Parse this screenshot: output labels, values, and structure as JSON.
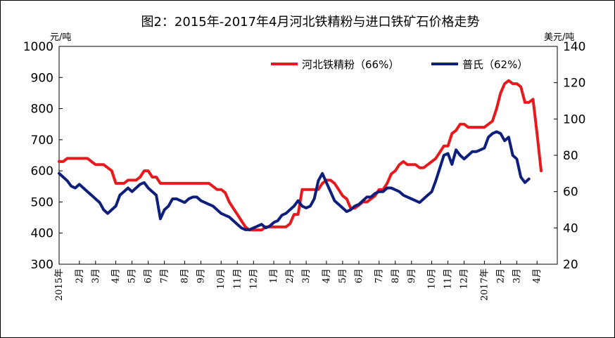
{
  "chart_data": {
    "type": "line",
    "title": "图2：2015年-2017年4月河北铁精粉与进口铁矿石价格走势",
    "ylabel_left": "元/吨",
    "ylabel_right": "美元/吨",
    "ylim_left": [
      300,
      1000
    ],
    "yticks_left": [
      300,
      400,
      500,
      600,
      700,
      800,
      900,
      1000
    ],
    "ylim_right": [
      20,
      140
    ],
    "yticks_right": [
      20,
      40,
      60,
      80,
      100,
      120,
      140
    ],
    "grid": false,
    "legend_position": "top-right",
    "x_range": [
      0,
      123
    ],
    "x_tick_labels": [
      {
        "label": "2015年",
        "x": 0
      },
      {
        "label": "2月",
        "x": 5
      },
      {
        "label": "3月",
        "x": 9
      },
      {
        "label": "4月",
        "x": 14
      },
      {
        "label": "5月",
        "x": 18
      },
      {
        "label": "6月",
        "x": 22
      },
      {
        "label": "7月",
        "x": 26
      },
      {
        "label": "8月",
        "x": 31
      },
      {
        "label": "9月",
        "x": 35
      },
      {
        "label": "10月",
        "x": 40
      },
      {
        "label": "11月",
        "x": 44
      },
      {
        "label": "12月",
        "x": 48
      },
      {
        "label": "1月",
        "x": 53
      },
      {
        "label": "2月",
        "x": 57
      },
      {
        "label": "3月",
        "x": 61
      },
      {
        "label": "4月",
        "x": 66
      },
      {
        "label": "5月",
        "x": 70
      },
      {
        "label": "6月",
        "x": 74
      },
      {
        "label": "7月",
        "x": 79
      },
      {
        "label": "8月",
        "x": 83
      },
      {
        "label": "9月",
        "x": 87
      },
      {
        "label": "10月",
        "x": 92
      },
      {
        "label": "11月",
        "x": 96
      },
      {
        "label": "12月",
        "x": 100
      },
      {
        "label": "2017年",
        "x": 105
      },
      {
        "label": "2月",
        "x": 109
      },
      {
        "label": "3月",
        "x": 113
      },
      {
        "label": "4月",
        "x": 118
      }
    ],
    "series": [
      {
        "name": "河北铁精粉（66%）",
        "axis": "left",
        "color": "#e8191c",
        "points": [
          [
            0,
            630
          ],
          [
            1,
            630
          ],
          [
            2,
            640
          ],
          [
            3,
            640
          ],
          [
            4,
            640
          ],
          [
            5,
            640
          ],
          [
            6,
            640
          ],
          [
            7,
            640
          ],
          [
            8,
            630
          ],
          [
            9,
            620
          ],
          [
            10,
            620
          ],
          [
            11,
            620
          ],
          [
            12,
            610
          ],
          [
            13,
            600
          ],
          [
            14,
            560
          ],
          [
            15,
            560
          ],
          [
            16,
            560
          ],
          [
            17,
            570
          ],
          [
            18,
            570
          ],
          [
            19,
            570
          ],
          [
            20,
            580
          ],
          [
            21,
            600
          ],
          [
            22,
            600
          ],
          [
            23,
            580
          ],
          [
            24,
            580
          ],
          [
            25,
            560
          ],
          [
            26,
            560
          ],
          [
            27,
            560
          ],
          [
            28,
            560
          ],
          [
            29,
            560
          ],
          [
            30,
            560
          ],
          [
            31,
            560
          ],
          [
            32,
            560
          ],
          [
            33,
            560
          ],
          [
            34,
            560
          ],
          [
            35,
            560
          ],
          [
            36,
            560
          ],
          [
            37,
            560
          ],
          [
            38,
            550
          ],
          [
            39,
            540
          ],
          [
            40,
            540
          ],
          [
            41,
            530
          ],
          [
            42,
            500
          ],
          [
            43,
            480
          ],
          [
            44,
            460
          ],
          [
            45,
            440
          ],
          [
            46,
            420
          ],
          [
            47,
            410
          ],
          [
            48,
            410
          ],
          [
            49,
            410
          ],
          [
            50,
            410
          ],
          [
            51,
            420
          ],
          [
            52,
            420
          ],
          [
            53,
            420
          ],
          [
            54,
            420
          ],
          [
            55,
            420
          ],
          [
            56,
            420
          ],
          [
            57,
            430
          ],
          [
            58,
            460
          ],
          [
            59,
            460
          ],
          [
            60,
            540
          ],
          [
            61,
            540
          ],
          [
            62,
            540
          ],
          [
            63,
            540
          ],
          [
            64,
            540
          ],
          [
            65,
            560
          ],
          [
            66,
            570
          ],
          [
            67,
            570
          ],
          [
            68,
            560
          ],
          [
            69,
            540
          ],
          [
            70,
            520
          ],
          [
            71,
            510
          ],
          [
            72,
            480
          ],
          [
            73,
            480
          ],
          [
            74,
            490
          ],
          [
            75,
            500
          ],
          [
            76,
            500
          ],
          [
            77,
            510
          ],
          [
            78,
            520
          ],
          [
            79,
            540
          ],
          [
            80,
            540
          ],
          [
            81,
            560
          ],
          [
            82,
            590
          ],
          [
            83,
            600
          ],
          [
            84,
            620
          ],
          [
            85,
            630
          ],
          [
            86,
            620
          ],
          [
            87,
            620
          ],
          [
            88,
            620
          ],
          [
            89,
            610
          ],
          [
            90,
            610
          ],
          [
            91,
            620
          ],
          [
            92,
            630
          ],
          [
            93,
            640
          ],
          [
            94,
            660
          ],
          [
            95,
            680
          ],
          [
            96,
            680
          ],
          [
            97,
            720
          ],
          [
            98,
            730
          ],
          [
            99,
            750
          ],
          [
            100,
            750
          ],
          [
            101,
            740
          ],
          [
            102,
            740
          ],
          [
            103,
            740
          ],
          [
            104,
            740
          ],
          [
            105,
            740
          ],
          [
            106,
            750
          ],
          [
            107,
            760
          ],
          [
            108,
            800
          ],
          [
            109,
            850
          ],
          [
            110,
            880
          ],
          [
            111,
            890
          ],
          [
            112,
            880
          ],
          [
            113,
            880
          ],
          [
            114,
            870
          ],
          [
            115,
            820
          ],
          [
            116,
            820
          ],
          [
            117,
            830
          ],
          [
            118,
            720
          ],
          [
            119,
            600
          ]
        ]
      },
      {
        "name": "普氏（62%）",
        "axis": "right",
        "color": "#0d1f7a",
        "points": [
          [
            0,
            70
          ],
          [
            1,
            68
          ],
          [
            2,
            66
          ],
          [
            3,
            63
          ],
          [
            4,
            62
          ],
          [
            5,
            64
          ],
          [
            6,
            62
          ],
          [
            7,
            60
          ],
          [
            8,
            58
          ],
          [
            9,
            56
          ],
          [
            10,
            54
          ],
          [
            11,
            50
          ],
          [
            12,
            48
          ],
          [
            13,
            50
          ],
          [
            14,
            52
          ],
          [
            15,
            58
          ],
          [
            16,
            60
          ],
          [
            17,
            62
          ],
          [
            18,
            60
          ],
          [
            19,
            62
          ],
          [
            20,
            64
          ],
          [
            21,
            65
          ],
          [
            22,
            62
          ],
          [
            23,
            60
          ],
          [
            24,
            58
          ],
          [
            25,
            45
          ],
          [
            26,
            50
          ],
          [
            27,
            52
          ],
          [
            28,
            56
          ],
          [
            29,
            56
          ],
          [
            30,
            55
          ],
          [
            31,
            54
          ],
          [
            32,
            56
          ],
          [
            33,
            57
          ],
          [
            34,
            57
          ],
          [
            35,
            55
          ],
          [
            36,
            54
          ],
          [
            37,
            53
          ],
          [
            38,
            52
          ],
          [
            39,
            50
          ],
          [
            40,
            48
          ],
          [
            41,
            47
          ],
          [
            42,
            46
          ],
          [
            43,
            44
          ],
          [
            44,
            42
          ],
          [
            45,
            40
          ],
          [
            46,
            39
          ],
          [
            47,
            39
          ],
          [
            48,
            40
          ],
          [
            49,
            41
          ],
          [
            50,
            42
          ],
          [
            51,
            40
          ],
          [
            52,
            41
          ],
          [
            53,
            43
          ],
          [
            54,
            44
          ],
          [
            55,
            47
          ],
          [
            56,
            48
          ],
          [
            57,
            50
          ],
          [
            58,
            52
          ],
          [
            59,
            55
          ],
          [
            60,
            52
          ],
          [
            61,
            51
          ],
          [
            62,
            52
          ],
          [
            63,
            56
          ],
          [
            64,
            66
          ],
          [
            65,
            70
          ],
          [
            66,
            65
          ],
          [
            67,
            60
          ],
          [
            68,
            55
          ],
          [
            69,
            53
          ],
          [
            70,
            51
          ],
          [
            71,
            49
          ],
          [
            72,
            50
          ],
          [
            73,
            52
          ],
          [
            74,
            53
          ],
          [
            75,
            55
          ],
          [
            76,
            57
          ],
          [
            77,
            57
          ],
          [
            78,
            59
          ],
          [
            79,
            60
          ],
          [
            80,
            60
          ],
          [
            81,
            62
          ],
          [
            82,
            62
          ],
          [
            83,
            61
          ],
          [
            84,
            60
          ],
          [
            85,
            58
          ],
          [
            86,
            57
          ],
          [
            87,
            56
          ],
          [
            88,
            55
          ],
          [
            89,
            54
          ],
          [
            90,
            56
          ],
          [
            91,
            58
          ],
          [
            92,
            60
          ],
          [
            93,
            66
          ],
          [
            94,
            73
          ],
          [
            95,
            80
          ],
          [
            96,
            81
          ],
          [
            97,
            75
          ],
          [
            98,
            83
          ],
          [
            99,
            80
          ],
          [
            100,
            78
          ],
          [
            101,
            80
          ],
          [
            102,
            82
          ],
          [
            103,
            82
          ],
          [
            104,
            83
          ],
          [
            105,
            84
          ],
          [
            106,
            90
          ],
          [
            107,
            92
          ],
          [
            108,
            93
          ],
          [
            109,
            92
          ],
          [
            110,
            88
          ],
          [
            111,
            90
          ],
          [
            112,
            80
          ],
          [
            113,
            78
          ],
          [
            114,
            68
          ],
          [
            115,
            65
          ],
          [
            116,
            67
          ]
        ]
      }
    ]
  }
}
